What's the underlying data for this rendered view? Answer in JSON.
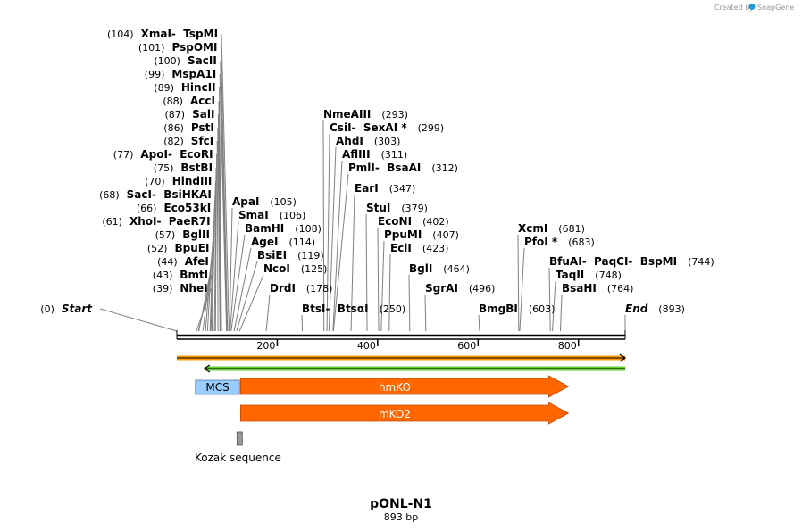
{
  "credit": {
    "created_by": "Created by",
    "app": "SnapGene"
  },
  "plasmid": {
    "name": "pONL-N1",
    "length_label": "893 bp",
    "length": 893
  },
  "axis": {
    "ticks": [
      200,
      400,
      600,
      800
    ]
  },
  "sites_left": [
    {
      "pos": 104,
      "pos_label": "(104)",
      "names": [
        "XmaI",
        "TspMI"
      ]
    },
    {
      "pos": 101,
      "pos_label": "(101)",
      "names": [
        "PspOMI"
      ]
    },
    {
      "pos": 100,
      "pos_label": "(100)",
      "names": [
        "SacII"
      ]
    },
    {
      "pos": 99,
      "pos_label": "(99)",
      "names": [
        "MspA1I"
      ]
    },
    {
      "pos": 89,
      "pos_label": "(89)",
      "names": [
        "HincII"
      ]
    },
    {
      "pos": 88,
      "pos_label": "(88)",
      "names": [
        "AccI"
      ]
    },
    {
      "pos": 87,
      "pos_label": "(87)",
      "names": [
        "SalI"
      ]
    },
    {
      "pos": 86,
      "pos_label": "(86)",
      "names": [
        "PstI"
      ]
    },
    {
      "pos": 82,
      "pos_label": "(82)",
      "names": [
        "SfcI"
      ]
    },
    {
      "pos": 77,
      "pos_label": "(77)",
      "names": [
        "ApoI",
        "EcoRI"
      ]
    },
    {
      "pos": 75,
      "pos_label": "(75)",
      "names": [
        "BstBI"
      ]
    },
    {
      "pos": 70,
      "pos_label": "(70)",
      "names": [
        "HindIII"
      ]
    },
    {
      "pos": 68,
      "pos_label": "(68)",
      "names": [
        "SacI",
        "BsiHKAI"
      ]
    },
    {
      "pos": 66,
      "pos_label": "(66)",
      "names": [
        "Eco53kI"
      ]
    },
    {
      "pos": 61,
      "pos_label": "(61)",
      "names": [
        "XhoI",
        "PaeR7I"
      ]
    },
    {
      "pos": 57,
      "pos_label": "(57)",
      "names": [
        "BglII"
      ]
    },
    {
      "pos": 52,
      "pos_label": "(52)",
      "names": [
        "BpuEI"
      ]
    },
    {
      "pos": 44,
      "pos_label": "(44)",
      "names": [
        "AfeI"
      ]
    },
    {
      "pos": 43,
      "pos_label": "(43)",
      "names": [
        "BmtI"
      ]
    },
    {
      "pos": 39,
      "pos_label": "(39)",
      "names": [
        "NheI"
      ]
    },
    {
      "pos": 0,
      "pos_label": "(0)",
      "names": [
        "Start"
      ],
      "italic": true
    }
  ],
  "sites_right": [
    {
      "pos": 105,
      "pos_label": "(105)",
      "names": [
        "ApaI"
      ]
    },
    {
      "pos": 106,
      "pos_label": "(106)",
      "names": [
        "SmaI"
      ]
    },
    {
      "pos": 108,
      "pos_label": "(108)",
      "names": [
        "BamHI"
      ]
    },
    {
      "pos": 114,
      "pos_label": "(114)",
      "names": [
        "AgeI"
      ]
    },
    {
      "pos": 119,
      "pos_label": "(119)",
      "names": [
        "BsiEI"
      ]
    },
    {
      "pos": 125,
      "pos_label": "(125)",
      "names": [
        "NcoI"
      ]
    },
    {
      "pos": 178,
      "pos_label": "(178)",
      "names": [
        "DrdI"
      ]
    },
    {
      "pos": 293,
      "pos_label": "(293)",
      "names": [
        "NmeAIII"
      ]
    },
    {
      "pos": 299,
      "pos_label": "(299)",
      "names": [
        "CsiI",
        "SexAI *"
      ]
    },
    {
      "pos": 303,
      "pos_label": "(303)",
      "names": [
        "AhdI"
      ]
    },
    {
      "pos": 311,
      "pos_label": "(311)",
      "names": [
        "AflIII"
      ]
    },
    {
      "pos": 312,
      "pos_label": "(312)",
      "names": [
        "PmlI",
        "BsaAI"
      ]
    },
    {
      "pos": 250,
      "pos_label": "(250)",
      "names": [
        "BtsI",
        "BtsαI"
      ]
    },
    {
      "pos": 347,
      "pos_label": "(347)",
      "names": [
        "EarI"
      ]
    },
    {
      "pos": 379,
      "pos_label": "(379)",
      "names": [
        "StuI"
      ]
    },
    {
      "pos": 402,
      "pos_label": "(402)",
      "names": [
        "EcoNI"
      ]
    },
    {
      "pos": 407,
      "pos_label": "(407)",
      "names": [
        "PpuMI"
      ]
    },
    {
      "pos": 423,
      "pos_label": "(423)",
      "names": [
        "EciI"
      ]
    },
    {
      "pos": 464,
      "pos_label": "(464)",
      "names": [
        "BglI"
      ]
    },
    {
      "pos": 496,
      "pos_label": "(496)",
      "names": [
        "SgrAI"
      ]
    },
    {
      "pos": 603,
      "pos_label": "(603)",
      "names": [
        "BmgBI"
      ]
    },
    {
      "pos": 681,
      "pos_label": "(681)",
      "names": [
        "XcmI"
      ]
    },
    {
      "pos": 683,
      "pos_label": "(683)",
      "names": [
        "PfoI *"
      ]
    },
    {
      "pos": 744,
      "pos_label": "(744)",
      "names": [
        "BfuAI",
        "PaqCI",
        "BspMI"
      ]
    },
    {
      "pos": 748,
      "pos_label": "(748)",
      "names": [
        "TaqII"
      ]
    },
    {
      "pos": 764,
      "pos_label": "(764)",
      "names": [
        "BsaHI"
      ]
    },
    {
      "pos": 893,
      "pos_label": "(893)",
      "names": [
        "End"
      ],
      "italic": true
    }
  ],
  "features": [
    {
      "name": "MCS",
      "type": "box",
      "start": 37,
      "end": 125,
      "color": "#99ccff",
      "text_color": "#000000"
    },
    {
      "name": "hmKO",
      "type": "arrow",
      "start": 127,
      "end": 780,
      "color": "#ff6600",
      "text_color": "#ffffff"
    },
    {
      "name": "mKO2",
      "type": "arrow",
      "start": 127,
      "end": 780,
      "color": "#ff6600",
      "text_color": "#ffffff"
    },
    {
      "name": "Kozak sequence",
      "type": "small",
      "start": 118,
      "end": 127,
      "color": "#999999",
      "text_color": "#000000"
    }
  ],
  "orfs": [
    {
      "direction": "forward",
      "start": 0,
      "end": 893,
      "color": "#ff9900"
    },
    {
      "direction": "reverse",
      "start": 55,
      "end": 893,
      "color": "#66cc33"
    }
  ],
  "colors": {
    "bar": "#000000",
    "leader": "#808080",
    "tick": "#000000"
  }
}
